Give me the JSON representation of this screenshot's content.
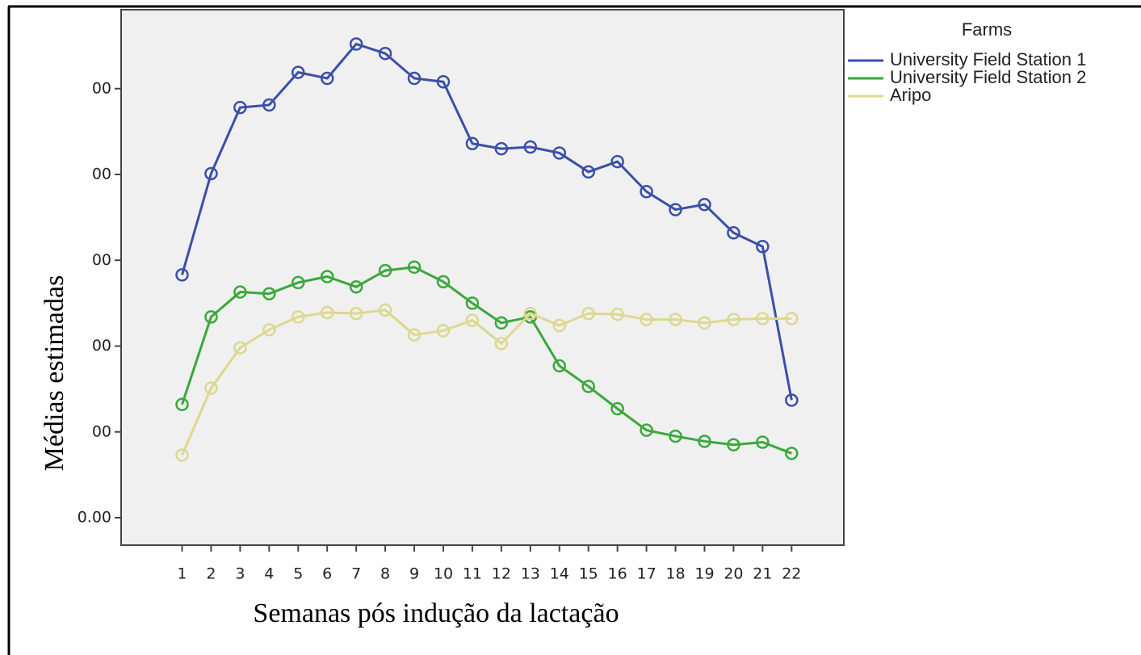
{
  "chart_data": {
    "type": "line",
    "x_label": "Semanas pós indução da lactação",
    "y_label": "Médias estimadas",
    "legend_title": "Farms",
    "legend_position": "right",
    "x": [
      1,
      2,
      3,
      4,
      5,
      6,
      7,
      8,
      9,
      10,
      11,
      12,
      13,
      14,
      15,
      16,
      17,
      18,
      19,
      20,
      21,
      22
    ],
    "xlim": [
      -1.1,
      23.8
    ],
    "xticks": [
      1,
      2,
      3,
      4,
      5,
      6,
      7,
      8,
      9,
      10,
      11,
      12,
      13,
      14,
      15,
      16,
      17,
      18,
      19,
      20,
      21,
      22
    ],
    "ylim": [
      -0.32,
      5.92
    ],
    "yticks": [
      {
        "value": 0,
        "label": "0.00"
      },
      {
        "value": 1,
        "label": "00"
      },
      {
        "value": 2,
        "label": "00"
      },
      {
        "value": 3,
        "label": "00"
      },
      {
        "value": 4,
        "label": "00"
      },
      {
        "value": 5,
        "label": "00"
      }
    ],
    "grid": false,
    "series": [
      {
        "name": "University Field Station 1",
        "color": "#3a4fa8",
        "values": [
          2.83,
          4.01,
          4.78,
          4.81,
          5.19,
          5.12,
          5.52,
          5.41,
          5.12,
          5.08,
          4.36,
          4.3,
          4.32,
          4.25,
          4.03,
          4.15,
          3.8,
          3.59,
          3.65,
          3.32,
          3.16,
          1.37
        ]
      },
      {
        "name": "University Field Station 2",
        "color": "#3aa83a",
        "values": [
          1.32,
          2.34,
          2.63,
          2.61,
          2.74,
          2.81,
          2.69,
          2.88,
          2.92,
          2.75,
          2.5,
          2.27,
          2.34,
          1.77,
          1.53,
          1.27,
          1.02,
          0.95,
          0.89,
          0.85,
          0.88,
          0.75
        ]
      },
      {
        "name": "Aripo",
        "color": "#dcd890",
        "values": [
          0.73,
          1.51,
          1.98,
          2.19,
          2.34,
          2.39,
          2.38,
          2.42,
          2.13,
          2.18,
          2.3,
          2.03,
          2.38,
          2.24,
          2.38,
          2.37,
          2.31,
          2.31,
          2.27,
          2.31,
          2.32,
          2.32
        ]
      }
    ]
  }
}
